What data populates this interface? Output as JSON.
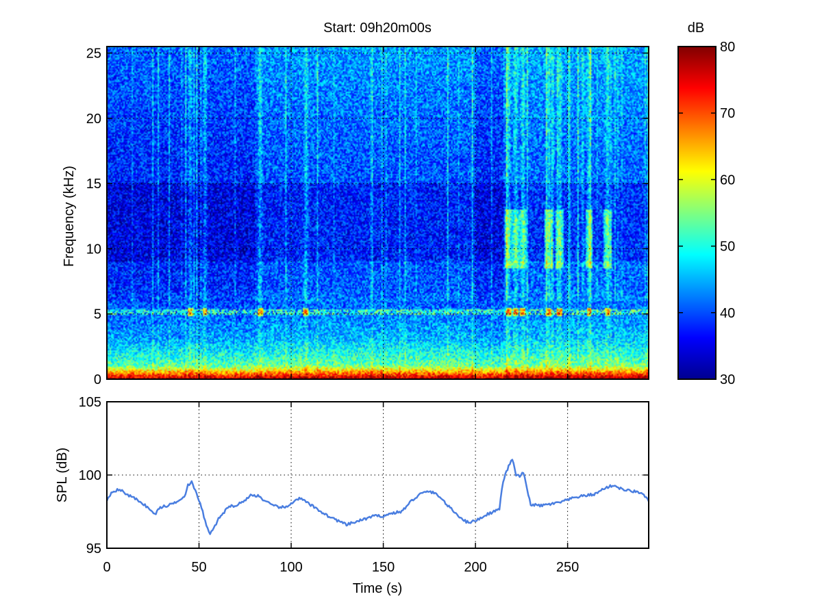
{
  "figure_title": "Start: 09h20m00s",
  "chart_data": [
    {
      "type": "heatmap",
      "title": "Start: 09h20m00s",
      "xlabel": "",
      "ylabel": "Frequency (kHz)",
      "xlim": [
        0,
        294
      ],
      "ylim": [
        0,
        25.5
      ],
      "yticks": [
        0,
        5,
        10,
        15,
        20,
        25
      ],
      "xticks": [
        0,
        50,
        100,
        150,
        200,
        250
      ],
      "grid": true,
      "colormap": "jet",
      "colorbar": {
        "label": "dB",
        "range": [
          30,
          80
        ],
        "ticks": [
          30,
          40,
          50,
          60,
          70,
          80
        ]
      },
      "features": {
        "low_frequency_band_kHz": [
          0,
          1
        ],
        "low_frequency_level_dB": 72,
        "tonal_line_kHz": 5.1,
        "broadband_events_s": [
          45,
          53,
          83,
          108,
          218,
          222,
          226,
          240,
          246,
          262,
          272
        ]
      }
    },
    {
      "type": "line",
      "xlabel": "Time (s)",
      "ylabel": "SPL (dB)",
      "xlim": [
        0,
        294
      ],
      "ylim": [
        95,
        105
      ],
      "yticks": [
        95,
        100,
        105
      ],
      "xticks": [
        0,
        50,
        100,
        150,
        200,
        250
      ],
      "grid": true,
      "series": [
        {
          "color": "#4a7ee0",
          "x": [
            0,
            3,
            7,
            12,
            18,
            22,
            26,
            29,
            33,
            38,
            40,
            42,
            44,
            46,
            48,
            50,
            52,
            54,
            56,
            58,
            60,
            63,
            67,
            70,
            74,
            78,
            82,
            86,
            90,
            94,
            98,
            102,
            105,
            110,
            115,
            120,
            125,
            130,
            135,
            140,
            145,
            150,
            155,
            160,
            165,
            170,
            175,
            180,
            185,
            190,
            195,
            198,
            202,
            206,
            210,
            213,
            215,
            218,
            220,
            222,
            224,
            226,
            228,
            230,
            235,
            240,
            245,
            250,
            255,
            260,
            265,
            270,
            275,
            280,
            285,
            290,
            294
          ],
          "values": [
            98.3,
            98.9,
            99.0,
            98.6,
            98.2,
            97.8,
            97.3,
            97.8,
            97.9,
            98.2,
            98.4,
            98.5,
            99.3,
            99.5,
            98.9,
            98.3,
            97.5,
            96.5,
            96.0,
            96.3,
            96.9,
            97.4,
            97.9,
            97.9,
            98.2,
            98.6,
            98.6,
            98.2,
            97.9,
            97.8,
            97.8,
            98.3,
            98.4,
            98.0,
            97.6,
            97.2,
            96.9,
            96.6,
            96.8,
            97.0,
            97.2,
            97.2,
            97.4,
            97.5,
            98.2,
            98.7,
            98.9,
            98.6,
            97.9,
            97.3,
            96.8,
            96.8,
            97.0,
            97.3,
            97.5,
            97.7,
            99.6,
            100.6,
            101.1,
            100.0,
            99.9,
            100.2,
            99.0,
            98.0,
            97.9,
            98.0,
            98.1,
            98.3,
            98.5,
            98.6,
            98.7,
            99.1,
            99.3,
            99.0,
            98.9,
            98.8,
            98.2
          ]
        }
      ]
    }
  ]
}
